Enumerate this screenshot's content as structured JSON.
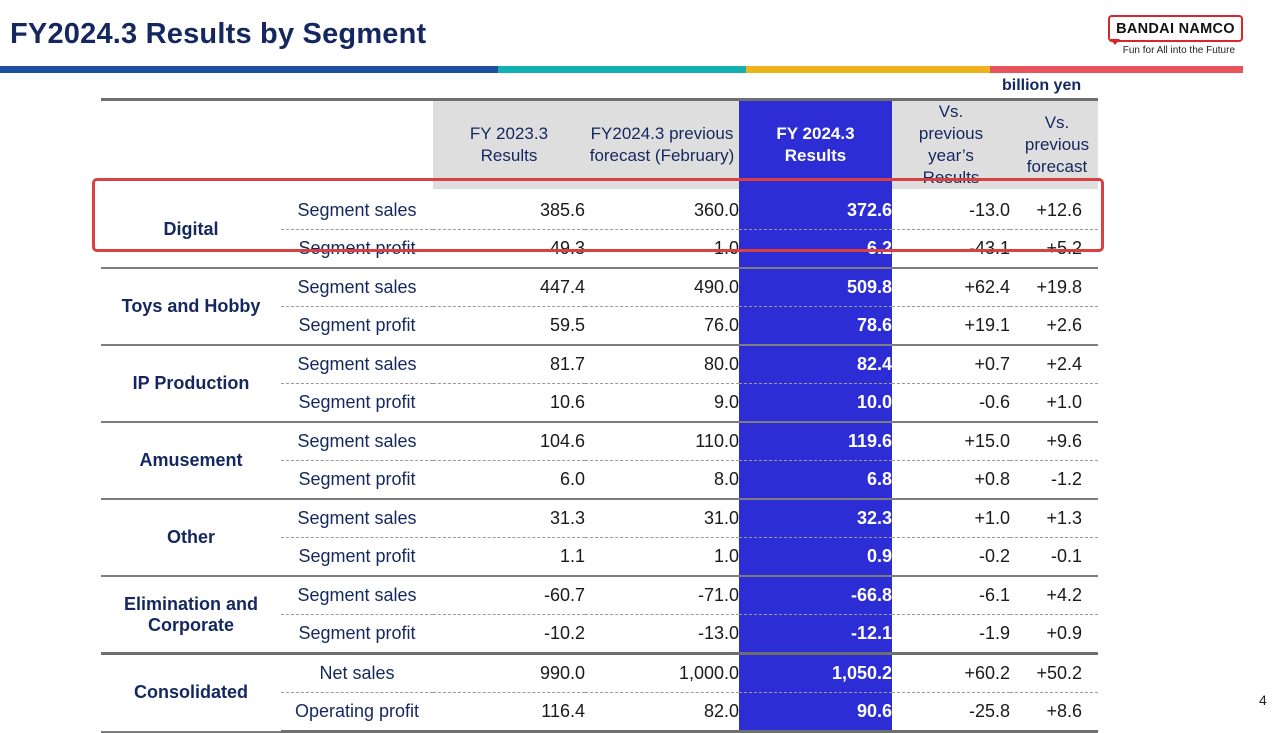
{
  "slide": {
    "title": "FY2024.3 Results by Segment",
    "unit": "billion yen",
    "page_number": "4"
  },
  "logo": {
    "name": "BANDAI NAMCO",
    "tagline": "Fun for All into the Future"
  },
  "colors": {
    "title": "#14285f",
    "highlight_column": "#2d2dd6",
    "digital_outline": "#d9403f",
    "stripe": [
      "#1f4f9e",
      "#12b0b0",
      "#f0b21c",
      "#e8525a"
    ]
  },
  "table": {
    "headers": [
      "FY 2023.3 Results",
      "FY2024.3 previous forecast (February)",
      "FY 2024.3 Results",
      "Vs. previous year’s Results",
      "Vs. previous forecast"
    ],
    "segments": [
      {
        "name": "Digital",
        "rows": [
          {
            "label": "Segment sales",
            "values": [
              "385.6",
              "360.0",
              "372.6",
              "-13.0",
              "+12.6"
            ]
          },
          {
            "label": "Segment profit",
            "values": [
              "49.3",
              "1.0",
              "6.2",
              "-43.1",
              "+5.2"
            ]
          }
        ]
      },
      {
        "name": "Toys and Hobby",
        "rows": [
          {
            "label": "Segment sales",
            "values": [
              "447.4",
              "490.0",
              "509.8",
              "+62.4",
              "+19.8"
            ]
          },
          {
            "label": "Segment profit",
            "values": [
              "59.5",
              "76.0",
              "78.6",
              "+19.1",
              "+2.6"
            ]
          }
        ]
      },
      {
        "name": "IP Production",
        "rows": [
          {
            "label": "Segment sales",
            "values": [
              "81.7",
              "80.0",
              "82.4",
              "+0.7",
              "+2.4"
            ]
          },
          {
            "label": "Segment profit",
            "values": [
              "10.6",
              "9.0",
              "10.0",
              "-0.6",
              "+1.0"
            ]
          }
        ]
      },
      {
        "name": "Amusement",
        "rows": [
          {
            "label": "Segment sales",
            "values": [
              "104.6",
              "110.0",
              "119.6",
              "+15.0",
              "+9.6"
            ]
          },
          {
            "label": "Segment profit",
            "values": [
              "6.0",
              "8.0",
              "6.8",
              "+0.8",
              "-1.2"
            ]
          }
        ]
      },
      {
        "name": "Other",
        "rows": [
          {
            "label": "Segment sales",
            "values": [
              "31.3",
              "31.0",
              "32.3",
              "+1.0",
              "+1.3"
            ]
          },
          {
            "label": "Segment profit",
            "values": [
              "1.1",
              "1.0",
              "0.9",
              "-0.2",
              "-0.1"
            ]
          }
        ]
      },
      {
        "name": "Elimination and Corporate",
        "rows": [
          {
            "label": "Segment sales",
            "values": [
              "-60.7",
              "-71.0",
              "-66.8",
              "-6.1",
              "+4.2"
            ]
          },
          {
            "label": "Segment profit",
            "values": [
              "-10.2",
              "-13.0",
              "-12.1",
              "-1.9",
              "+0.9"
            ]
          }
        ]
      },
      {
        "name": "Consolidated",
        "rows": [
          {
            "label": "Net sales",
            "values": [
              "990.0",
              "1,000.0",
              "1,050.2",
              "+60.2",
              "+50.2"
            ]
          },
          {
            "label": "Operating profit",
            "values": [
              "116.4",
              "82.0",
              "90.6",
              "-25.8",
              "+8.6"
            ]
          }
        ]
      }
    ]
  }
}
